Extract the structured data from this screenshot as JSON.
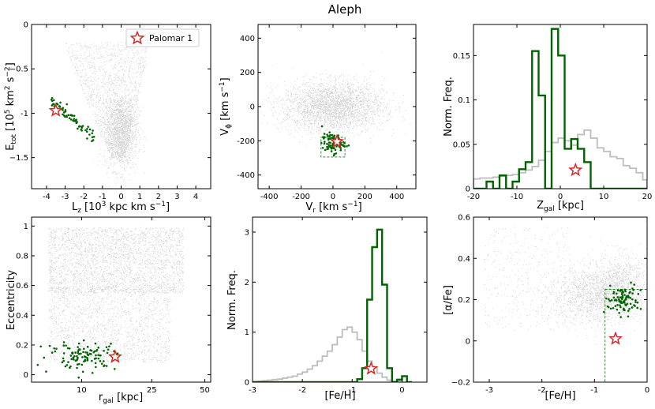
{
  "title": "Aleph",
  "colors": {
    "background": "#d3d3d3",
    "selection": "#006400",
    "highlight": "#d62728",
    "box": "#2e8b2e"
  },
  "legend": {
    "label": "Palomar 1",
    "marker": "star-icon"
  },
  "chart_data": [
    {
      "id": "p1",
      "type": "scatter",
      "xlabel": "L_z [10^3 kpc km s^-1]",
      "ylabel": "E_tot [10^5 km^2 s^-2]",
      "xlim": [
        -4.8,
        4.8
      ],
      "ylim": [
        -1.85,
        0.0
      ],
      "xticks": [
        -4,
        -3,
        -2,
        -1,
        0,
        1,
        2,
        3,
        4
      ],
      "yticks": [
        0.0,
        -0.5,
        -1.0,
        -1.5
      ],
      "background": {
        "clouds": [
          {
            "n": 1400,
            "x": [
              -3.2,
              1.6
            ],
            "y": [
              -1.5,
              -0.2
            ],
            "shape": "v",
            "apex": [
              0,
              -1.75
            ]
          },
          {
            "n": 1300,
            "cx": 0.0,
            "cy": -1.2,
            "sx": 0.45,
            "sy": 0.22
          }
        ]
      },
      "selected": {
        "n": 70,
        "x0": -3.7,
        "y0": -0.85,
        "x1": -1.4,
        "y1": -1.3,
        "spread": 0.03
      },
      "star": {
        "x": -3.5,
        "y": -0.97
      }
    },
    {
      "id": "p2",
      "type": "scatter",
      "xlabel": "V_r [km s^-1]",
      "ylabel": "V_phi [km s^-1]",
      "xlim": [
        -470,
        520
      ],
      "ylim": [
        -480,
        480
      ],
      "xticks": [
        -400,
        -200,
        0,
        200,
        400
      ],
      "yticks": [
        400,
        200,
        0,
        -200,
        -400
      ],
      "background": {
        "clouds": [
          {
            "n": 2600,
            "cx": 0,
            "cy": 0,
            "sx": 160,
            "sy": 75
          }
        ]
      },
      "selected": {
        "n": 90,
        "cx": 0,
        "cy": -215,
        "sx": 35,
        "sy": 28
      },
      "box": {
        "x": [
          -75,
          75
        ],
        "y": [
          -295,
          -180
        ]
      },
      "star": {
        "x": 25,
        "y": -205
      }
    },
    {
      "id": "p3",
      "type": "histogram",
      "xlabel": "Z_gal [kpc]",
      "ylabel": "Norm. Freq.",
      "xlim": [
        -20,
        20
      ],
      "ylim": [
        0,
        0.185
      ],
      "xticks": [
        -20,
        -10,
        0,
        10,
        20
      ],
      "yticks": [
        0.0,
        0.05,
        0.1,
        0.15
      ],
      "bin_edges": [
        -20,
        -18.5,
        -17,
        -15.5,
        -14,
        -12.5,
        -11,
        -9.5,
        -8,
        -6.5,
        -5,
        -3.5,
        -2,
        -0.5,
        1,
        2.5,
        4,
        5.5,
        7,
        8.5,
        10,
        11.5,
        13,
        14.5,
        16,
        17.5,
        19,
        20
      ],
      "series": [
        {
          "name": "background",
          "values": [
            0.011,
            0.012,
            0.012,
            0.013,
            0.014,
            0.015,
            0.016,
            0.018,
            0.021,
            0.025,
            0.032,
            0.042,
            0.052,
            0.057,
            0.054,
            0.049,
            0.061,
            0.066,
            0.057,
            0.046,
            0.042,
            0.036,
            0.034,
            0.026,
            0.023,
            0.018,
            0.01
          ]
        },
        {
          "name": "selected",
          "values": [
            0,
            0,
            0.008,
            0.0,
            0.015,
            0.0,
            0.008,
            0.022,
            0.03,
            0.155,
            0.105,
            0.0,
            0.18,
            0.15,
            0.045,
            0.056,
            0.045,
            0.03,
            0.0,
            0,
            0,
            0,
            0,
            0,
            0,
            0,
            0
          ]
        }
      ],
      "star": {
        "x": 3.5,
        "y": 0.021
      }
    },
    {
      "id": "p4",
      "type": "scatter",
      "xlabel": "r_gal [kpc]",
      "ylabel": "Eccentricity",
      "xscale": "log",
      "xlim": [
        5.2,
        54
      ],
      "ylim": [
        -0.05,
        1.06
      ],
      "xticks": [
        10,
        25,
        50
      ],
      "yticks": [
        0.0,
        0.2,
        0.4,
        0.6,
        0.8,
        1.0
      ],
      "background": {
        "clouds": [
          {
            "n": 2500,
            "x": [
              6.5,
              38
            ],
            "y": [
              0.55,
              0.99
            ]
          },
          {
            "n": 1600,
            "x": [
              6.5,
              32
            ],
            "y": [
              0.08,
              0.6
            ]
          }
        ]
      },
      "selected": {
        "n": 110,
        "cx": 10.5,
        "cy": 0.13,
        "sx": 2.6,
        "sy": 0.045
      },
      "star": {
        "x": 15.5,
        "y": 0.12
      }
    },
    {
      "id": "p5",
      "type": "histogram",
      "xlabel": "[Fe/H]",
      "ylabel": "Norm. Freq.",
      "xlim": [
        -3,
        0.5
      ],
      "ylim": [
        0,
        3.3
      ],
      "xticks": [
        -3,
        -2,
        -1,
        0
      ],
      "yticks": [
        0,
        1,
        2,
        3
      ],
      "bin_edges": [
        -3.0,
        -2.9,
        -2.8,
        -2.7,
        -2.6,
        -2.5,
        -2.4,
        -2.3,
        -2.2,
        -2.1,
        -2.0,
        -1.9,
        -1.8,
        -1.7,
        -1.6,
        -1.5,
        -1.4,
        -1.3,
        -1.2,
        -1.1,
        -1.0,
        -0.9,
        -0.8,
        -0.7,
        -0.6,
        -0.5,
        -0.4,
        -0.3,
        -0.2,
        -0.1,
        0.0,
        0.1,
        0.2
      ],
      "series": [
        {
          "name": "background",
          "values": [
            0.01,
            0.02,
            0.03,
            0.04,
            0.05,
            0.06,
            0.08,
            0.1,
            0.12,
            0.16,
            0.2,
            0.26,
            0.33,
            0.42,
            0.52,
            0.62,
            0.75,
            0.9,
            1.05,
            1.1,
            1.0,
            0.85,
            0.62,
            0.42,
            0.3,
            0.18,
            0.1,
            0.04,
            0.02,
            0.01,
            0.0,
            0.0
          ]
        },
        {
          "name": "selected",
          "values": [
            0,
            0,
            0,
            0,
            0,
            0,
            0,
            0,
            0,
            0,
            0,
            0,
            0,
            0,
            0,
            0,
            0,
            0,
            0,
            0,
            0,
            0.06,
            0.28,
            1.65,
            2.7,
            3.05,
            1.95,
            0.28,
            0.0,
            0.05,
            0.12,
            0.0
          ]
        }
      ],
      "star": {
        "x": -0.62,
        "y": 0.27
      }
    },
    {
      "id": "p6",
      "type": "scatter",
      "xlabel": "[Fe/H]",
      "ylabel": "[alpha/Fe]",
      "xlim": [
        -3.3,
        0.0
      ],
      "ylim": [
        -0.2,
        0.6
      ],
      "xticks": [
        -3,
        -2,
        -1,
        0
      ],
      "yticks": [
        0.6,
        0.4,
        0.2,
        0.0,
        -0.2
      ],
      "background": {
        "clouds": [
          {
            "n": 1300,
            "cx": -1.0,
            "cy": 0.22,
            "sx": 0.42,
            "sy": 0.07
          },
          {
            "n": 700,
            "cx": -0.5,
            "cy": 0.28,
            "sx": 0.25,
            "sy": 0.07
          },
          {
            "n": 350,
            "x": [
              -3.1,
              -1.5
            ],
            "y": [
              0.05,
              0.55
            ]
          }
        ]
      },
      "selected": {
        "n": 90,
        "cx": -0.45,
        "cy": 0.2,
        "sx": 0.17,
        "sy": 0.035
      },
      "box": {
        "x": [
          -0.8,
          0.0
        ],
        "y": [
          -0.2,
          0.25
        ]
      },
      "star": {
        "x": -0.6,
        "y": 0.01
      }
    }
  ],
  "labels": {
    "p1_x": "L",
    "p1_xsub": "z",
    "p1_xrest": " [10",
    "p1_xsup": "3",
    "p1_xrest2": " kpc km s",
    "p1_xsup2": "−1",
    "p1_xend": "]",
    "p1_y": "E",
    "p1_ysub": "tot",
    "p1_yrest": " [10",
    "p1_ysup": "5",
    "p1_yrest2": " km",
    "p1_ysup2": "2",
    "p1_yrest3": " s",
    "p1_ysup3": "−2",
    "p1_yend": "]",
    "p2_x": "V",
    "p2_xsub": "r",
    "p2_xrest": " [km s",
    "p2_xsup": "−1",
    "p2_xend": "]",
    "p2_y": "V",
    "p2_ysub": "ϕ",
    "p2_yrest": " [km s",
    "p2_ysup": "−1",
    "p2_yend": "]",
    "p3_x": "Z",
    "p3_xsub": "gal",
    "p3_xrest": " [kpc]",
    "p3_y": "Norm. Freq.",
    "p4_x": "r",
    "p4_xsub": "gal",
    "p4_xrest": " [kpc]",
    "p4_y": "Eccentricity",
    "p5_x": "[Fe/H]",
    "p5_y": "Norm. Freq.",
    "p6_x": "[Fe/H]",
    "p6_y": "[α/Fe]"
  }
}
